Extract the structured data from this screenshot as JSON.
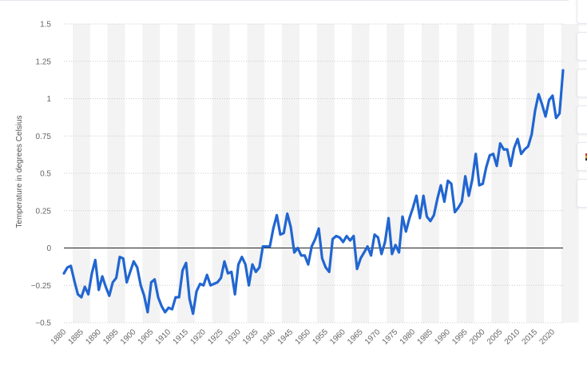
{
  "chart_data": {
    "type": "line",
    "title": "",
    "xlabel": "",
    "ylabel": "Temperature in degrees Celsius",
    "xlim": [
      1880,
      2023
    ],
    "ylim": [
      -0.5,
      1.5
    ],
    "yticks": [
      1.5,
      1.25,
      1,
      0.75,
      0.5,
      0.25,
      0,
      -0.25,
      -0.5
    ],
    "ytick_labels": [
      "1.5",
      "1.25",
      "1",
      "0.75",
      "0.5",
      "0.25",
      "0",
      "−0.25",
      "−0.5"
    ],
    "xtick_labels": [
      "1880",
      "1885",
      "1890",
      "1895",
      "1900",
      "1905",
      "1910",
      "1915",
      "1920",
      "1925",
      "1930",
      "1935",
      "1940",
      "1945",
      "1950",
      "1955",
      "1960",
      "1965",
      "1970",
      "1975",
      "1980",
      "1985",
      "1990",
      "1995",
      "2000",
      "2005",
      "2010",
      "2015",
      "2020"
    ],
    "grid": true,
    "line_color": "#2166d1",
    "zero_line": true,
    "series": [
      {
        "x": [
          1880,
          1881,
          1882,
          1883,
          1884,
          1885,
          1886,
          1887,
          1888,
          1889,
          1890,
          1891,
          1892,
          1893,
          1894,
          1895,
          1896,
          1897,
          1898,
          1899,
          1900,
          1901,
          1902,
          1903,
          1904,
          1905,
          1906,
          1907,
          1908,
          1909,
          1910,
          1911,
          1912,
          1913,
          1914,
          1915,
          1916,
          1917,
          1918,
          1919,
          1920,
          1921,
          1922,
          1923,
          1924,
          1925,
          1926,
          1927,
          1928,
          1929,
          1930,
          1931,
          1932,
          1933,
          1934,
          1935,
          1936,
          1937,
          1938,
          1939,
          1940,
          1941,
          1942,
          1943,
          1944,
          1945,
          1946,
          1947,
          1948,
          1949,
          1950,
          1951,
          1952,
          1953,
          1954,
          1955,
          1956,
          1957,
          1958,
          1959,
          1960,
          1961,
          1962,
          1963,
          1964,
          1965,
          1966,
          1967,
          1968,
          1969,
          1970,
          1971,
          1972,
          1973,
          1974,
          1975,
          1976,
          1977,
          1978,
          1979,
          1980,
          1981,
          1982,
          1983,
          1984,
          1985,
          1986,
          1987,
          1988,
          1989,
          1990,
          1991,
          1992,
          1993,
          1994,
          1995,
          1996,
          1997,
          1998,
          1999,
          2000,
          2001,
          2002,
          2003,
          2004,
          2005,
          2006,
          2007,
          2008,
          2009,
          2010,
          2011,
          2012,
          2013,
          2014,
          2015,
          2016,
          2017,
          2018,
          2019,
          2020,
          2021,
          2022,
          2023
        ],
        "values": [
          -0.17,
          -0.13,
          -0.12,
          -0.22,
          -0.31,
          -0.33,
          -0.26,
          -0.31,
          -0.17,
          -0.08,
          -0.28,
          -0.19,
          -0.26,
          -0.32,
          -0.23,
          -0.2,
          -0.06,
          -0.07,
          -0.23,
          -0.16,
          -0.09,
          -0.13,
          -0.25,
          -0.32,
          -0.43,
          -0.23,
          -0.21,
          -0.33,
          -0.39,
          -0.43,
          -0.4,
          -0.41,
          -0.33,
          -0.33,
          -0.15,
          -0.1,
          -0.34,
          -0.44,
          -0.29,
          -0.24,
          -0.25,
          -0.18,
          -0.25,
          -0.24,
          -0.23,
          -0.2,
          -0.09,
          -0.17,
          -0.16,
          -0.31,
          -0.11,
          -0.06,
          -0.11,
          -0.25,
          -0.11,
          -0.16,
          -0.13,
          0.01,
          0.01,
          0.01,
          0.13,
          0.22,
          0.09,
          0.1,
          0.23,
          0.14,
          -0.03,
          0.0,
          -0.05,
          -0.05,
          -0.11,
          0.01,
          0.06,
          0.13,
          -0.07,
          -0.13,
          -0.16,
          0.06,
          0.08,
          0.07,
          0.04,
          0.08,
          0.05,
          0.08,
          -0.14,
          -0.07,
          -0.03,
          0.01,
          -0.05,
          0.09,
          0.07,
          -0.04,
          0.04,
          0.2,
          -0.04,
          0.02,
          -0.03,
          0.21,
          0.11,
          0.2,
          0.27,
          0.35,
          0.2,
          0.35,
          0.21,
          0.18,
          0.22,
          0.33,
          0.42,
          0.31,
          0.45,
          0.43,
          0.24,
          0.27,
          0.31,
          0.48,
          0.35,
          0.46,
          0.63,
          0.42,
          0.43,
          0.54,
          0.62,
          0.63,
          0.55,
          0.7,
          0.66,
          0.66,
          0.55,
          0.67,
          0.73,
          0.63,
          0.66,
          0.68,
          0.76,
          0.92,
          1.03,
          0.96,
          0.88,
          0.99,
          1.02,
          0.87,
          0.9,
          1.19
        ]
      }
    ]
  }
}
